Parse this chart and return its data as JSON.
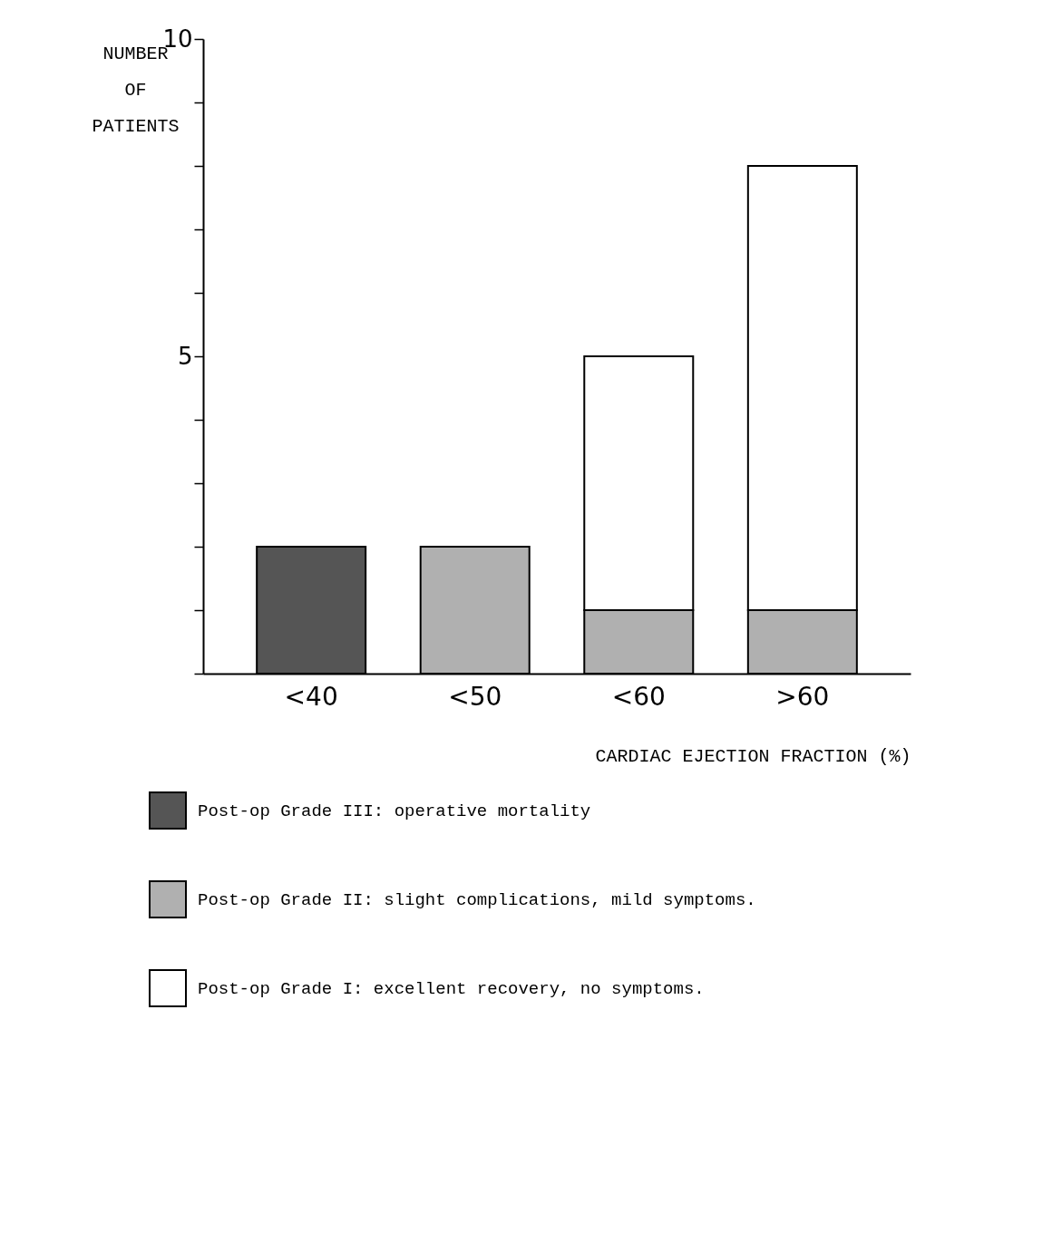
{
  "chart_data": {
    "type": "bar",
    "stacked": true,
    "categories": [
      "<40",
      "<50",
      "<60",
      ">60"
    ],
    "xlabel": "CARDIAC EJECTION FRACTION (%)",
    "ylabel": "NUMBER OF PATIENTS",
    "ylim": [
      0,
      10
    ],
    "yticks": [
      {
        "value": 0,
        "label": null
      },
      {
        "value": 1,
        "label": null
      },
      {
        "value": 2,
        "label": null
      },
      {
        "value": 3,
        "label": null
      },
      {
        "value": 4,
        "label": null
      },
      5,
      {
        "value": 6,
        "label": null
      },
      {
        "value": 7,
        "label": null
      },
      {
        "value": 8,
        "label": null
      },
      {
        "value": 9,
        "label": null
      },
      10
    ],
    "legend": "bottom left",
    "grid": false,
    "series": [
      {
        "name": "Post-op Grade III: operative mortality",
        "color": "#555555",
        "values": [
          2,
          null,
          null,
          null
        ]
      },
      {
        "name": "Post-op Grade II: slight complications, mild symptoms.",
        "color": "#b0b0b0",
        "values": [
          null,
          2,
          1,
          1
        ]
      },
      {
        "name": "Post-op Grade I:  excellent recovery, no symptoms.",
        "color": "#ffffff",
        "values": [
          null,
          null,
          4,
          7
        ]
      }
    ]
  }
}
